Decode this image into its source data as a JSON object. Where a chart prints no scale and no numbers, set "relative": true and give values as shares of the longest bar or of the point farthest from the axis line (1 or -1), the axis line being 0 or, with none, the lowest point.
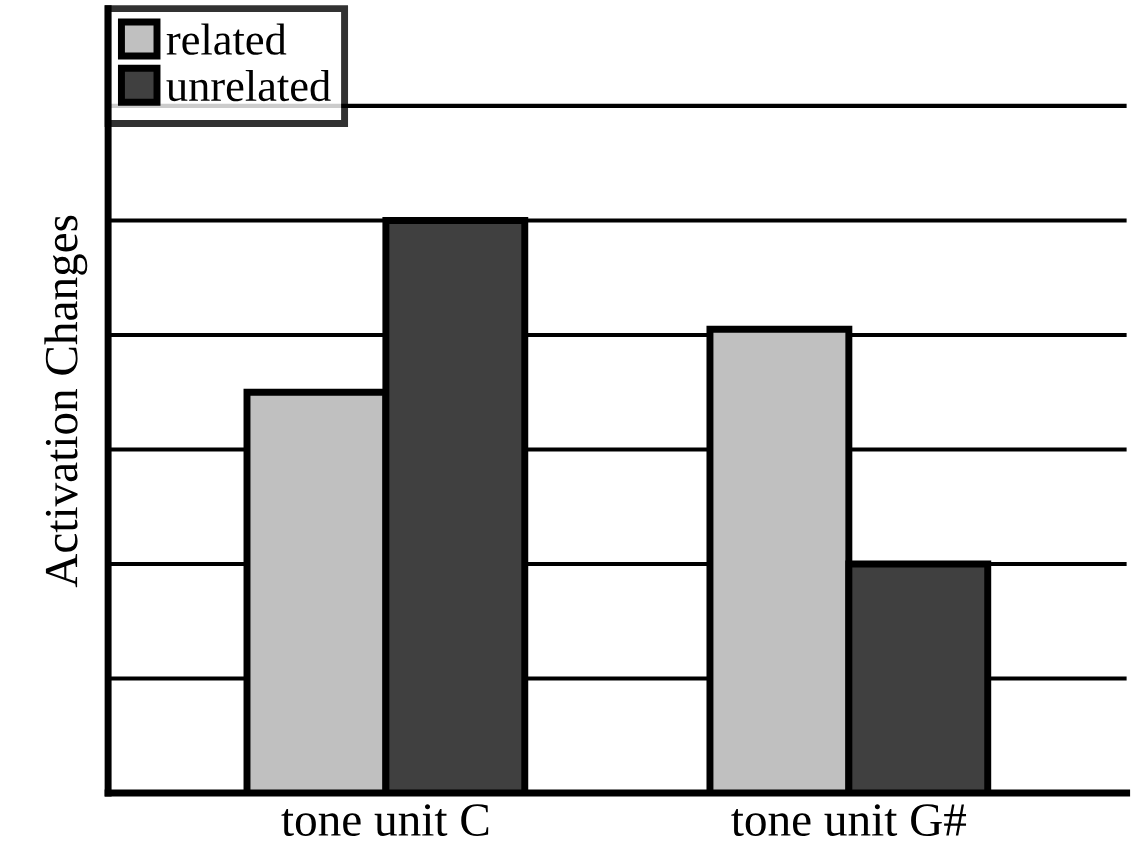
{
  "chart_data": {
    "type": "bar",
    "ylabel": "Activation Changes",
    "categories": [
      "tone unit C",
      "tone unit G#"
    ],
    "series": [
      {
        "name": "related",
        "color": "#c0c0c0",
        "values": [
          0.7,
          0.81
        ]
      },
      {
        "name": "unrelated",
        "color": "#404040",
        "values": [
          1,
          0.4
        ]
      }
    ],
    "relative": true,
    "grid": "y",
    "legend": "top left"
  }
}
